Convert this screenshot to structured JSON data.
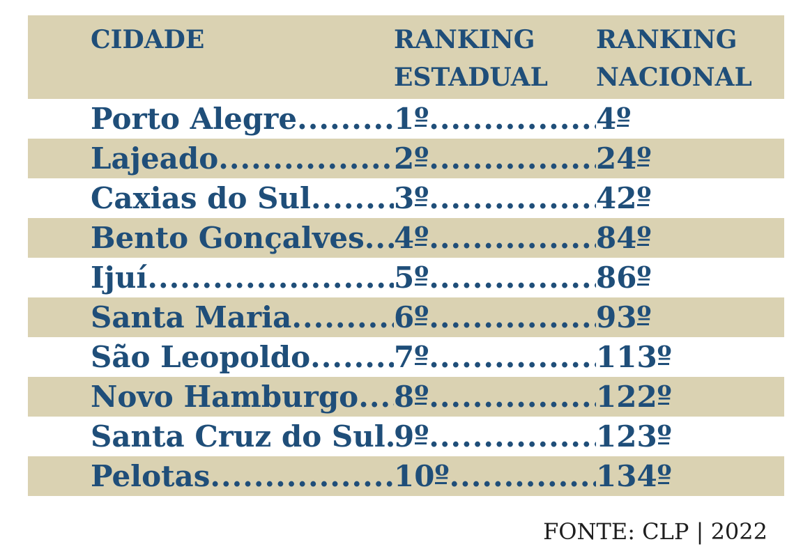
{
  "chart_data": {
    "type": "table",
    "title": "",
    "columns": [
      "CIDADE",
      "RANKING ESTADUAL",
      "RANKING NACIONAL"
    ],
    "ordinal_suffix": "º",
    "leader_dots": "........................................................................",
    "rows": [
      {
        "city": "Porto Alegre",
        "estadual": "1",
        "nacional": "4"
      },
      {
        "city": "Lajeado",
        "estadual": "2",
        "nacional": "24"
      },
      {
        "city": "Caxias do Sul",
        "estadual": "3",
        "nacional": "42"
      },
      {
        "city": "Bento Gonçalves",
        "estadual": "4",
        "nacional": "84"
      },
      {
        "city": "Ijuí",
        "estadual": "5",
        "nacional": "86"
      },
      {
        "city": "Santa Maria",
        "estadual": "6",
        "nacional": "93"
      },
      {
        "city": "São Leopoldo",
        "estadual": "7",
        "nacional": "113"
      },
      {
        "city": "Novo Hamburgo",
        "estadual": "8",
        "nacional": "122"
      },
      {
        "city": "Santa Cruz do Sul",
        "estadual": "9",
        "nacional": "123"
      },
      {
        "city": "Pelotas",
        "estadual": "10",
        "nacional": "134"
      }
    ],
    "source": "FONTE: CLP | 2022",
    "layout": {
      "striped": true,
      "stripe_color": "#DAD2B2",
      "text_color": "#1F4E79"
    }
  },
  "colors": {
    "band_beige": "#DAD2B2",
    "accent_blue": "#1F4E79",
    "source_text": "#1E1E1E",
    "background": "#FFFFFF"
  }
}
